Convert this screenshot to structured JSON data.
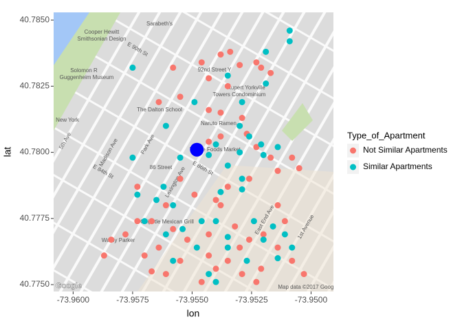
{
  "chart_data": {
    "type": "scatter",
    "x_label": "lon",
    "y_label": "lat",
    "legend_title": "Type_of_Apartment",
    "legend": "right",
    "xlim": [
      -73.96082,
      -73.94906
    ],
    "ylim": [
      40.77474,
      40.78529
    ],
    "xticks": [
      {
        "value": -73.96,
        "label": "-73.9600"
      },
      {
        "value": -73.9575,
        "label": "-73.9575"
      },
      {
        "value": -73.955,
        "label": "-73.9550"
      },
      {
        "value": -73.9525,
        "label": "-73.9525"
      },
      {
        "value": -73.95,
        "label": "-73.9500"
      }
    ],
    "yticks": [
      {
        "value": 40.775,
        "label": "40.7750"
      },
      {
        "value": 40.7775,
        "label": "40.7775"
      },
      {
        "value": 40.78,
        "label": "40.7800"
      },
      {
        "value": 40.7825,
        "label": "40.7825"
      },
      {
        "value": 40.785,
        "label": "40.7850"
      }
    ],
    "series": [
      {
        "name": "Not Similar Apartments",
        "color": "#f8766d",
        "x": [
          -73.9534,
          -73.9538,
          -73.953,
          -73.9523,
          -73.9521,
          -73.9517,
          -73.9558,
          -73.9546,
          -73.9543,
          -73.9535,
          -73.9555,
          -73.9564,
          -73.9543,
          -73.9538,
          -73.9529,
          -73.9527,
          -73.9538,
          -73.9543,
          -73.9523,
          -73.9517,
          -73.9508,
          -73.9505,
          -73.9514,
          -73.9526,
          -73.9535,
          -73.954,
          -73.9549,
          -73.9561,
          -73.9567,
          -73.9558,
          -73.9552,
          -73.9543,
          -73.9532,
          -73.9526,
          -73.952,
          -73.9514,
          -73.9508,
          -73.9503,
          -73.9535,
          -73.9543,
          -73.9555,
          -73.9561,
          -73.9567,
          -73.9529,
          -73.9523,
          -73.9546,
          -73.954,
          -73.9573,
          -73.9578,
          -73.9584,
          -73.9587,
          -73.957,
          -73.9564,
          -73.9538,
          -73.9514,
          -73.9511,
          -73.9555,
          -73.9573,
          -73.9521,
          -73.953
        ],
        "y": [
          40.7838,
          40.7837,
          40.7833,
          40.7834,
          40.7832,
          40.783,
          40.7832,
          40.7834,
          40.7828,
          40.7825,
          40.7821,
          40.7819,
          40.7816,
          40.7815,
          40.7813,
          40.7807,
          40.7806,
          40.7804,
          40.7802,
          40.7798,
          40.7798,
          40.7794,
          40.7793,
          40.779,
          40.7787,
          40.7782,
          40.7784,
          40.778,
          40.7774,
          40.7771,
          40.7767,
          40.7769,
          40.7772,
          40.7767,
          40.7769,
          40.7764,
          40.7759,
          40.7754,
          40.7759,
          40.7761,
          40.7759,
          40.7754,
          40.7755,
          40.7754,
          40.7751,
          40.7751,
          40.7756,
          40.7774,
          40.7769,
          40.7767,
          40.7761,
          40.7761,
          40.7764,
          40.778,
          40.778,
          40.7774,
          40.779,
          40.7787,
          40.7756,
          40.7764
        ]
      },
      {
        "name": "Similar Apartments",
        "color": "#00bfc4",
        "x": [
          -73.9509,
          -73.9509,
          -73.9519,
          -73.9519,
          -73.9535,
          -73.9575,
          -73.9549,
          -73.9529,
          -73.9561,
          -73.954,
          -73.953,
          -73.9526,
          -73.9521,
          -73.952,
          -73.9514,
          -73.953,
          -73.9535,
          -73.9543,
          -73.9555,
          -73.9562,
          -73.9558,
          -73.9565,
          -73.9573,
          -73.9529,
          -73.9524,
          -73.9535,
          -73.954,
          -73.9546,
          -73.952,
          -73.9516,
          -73.9511,
          -73.9548,
          -73.9554,
          -73.9535,
          -73.9527,
          -73.9558,
          -73.9543,
          -73.954,
          -73.9514,
          -73.9508,
          -73.9561,
          -73.957,
          -73.9575,
          -73.9529,
          -73.9538
        ],
        "y": [
          40.7846,
          40.7842,
          40.7838,
          40.7826,
          40.7829,
          40.7832,
          40.7819,
          40.7819,
          40.781,
          40.7803,
          40.781,
          40.7806,
          40.7803,
          40.7799,
          40.7802,
          40.78,
          40.7795,
          40.7799,
          40.7798,
          40.7787,
          40.778,
          40.7782,
          40.7784,
          40.7786,
          40.7774,
          40.7768,
          40.7774,
          40.7774,
          40.7767,
          40.7772,
          40.7769,
          40.7764,
          40.7771,
          40.7764,
          40.7759,
          40.7759,
          40.7754,
          40.7751,
          40.776,
          40.7764,
          40.7769,
          40.7774,
          40.7798,
          40.779,
          40.7785
        ]
      }
    ],
    "highlight": {
      "x": -73.9548,
      "y": 40.7801,
      "color": "#0000ff"
    }
  },
  "map": {
    "labels": [
      "Sarabeth's",
      "Cooper Hewitt",
      "Smithsonian Design",
      "Solomon R",
      "Guggenheim Museum",
      "92nd Street Y",
      "Rupert Yorkville",
      "Towers Condominium",
      "The Dalton School",
      "Naruto Ramen",
      "Whole Foods Market",
      "86 Street",
      "Chipotle Mexican Grill",
      "Warby Parker",
      "New York",
      "5th Ave",
      "Park Ave",
      "Madison Ave",
      "Lexington Ave",
      "East End Ave",
      "1st Avenue",
      "E 90th St",
      "E 86th St",
      "E 84th St",
      "Map data ©2017 Google",
      "Google"
    ]
  }
}
